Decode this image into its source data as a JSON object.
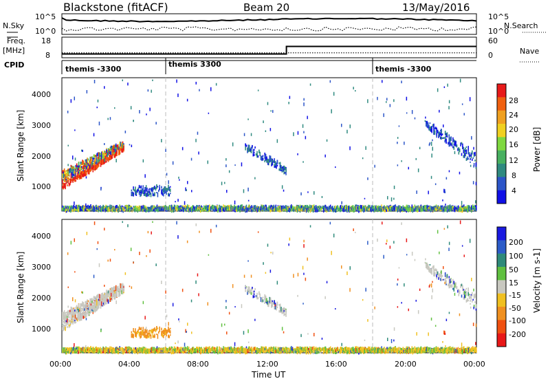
{
  "header": {
    "station": "Blackstone (fitACF)",
    "beam": "Beam 20",
    "date": "13/May/2016"
  },
  "side_labels": {
    "nsky": "N.Sky",
    "nsearch": "N.Search",
    "freq": "Freq.",
    "freq_unit": "[MHz]",
    "nave": "Nave",
    "cpid": "CPID"
  },
  "cpid_segments": [
    {
      "label": "themis -3300",
      "start_h": 0
    },
    {
      "label": "themis 3300",
      "start_h": 6
    },
    {
      "label": "themis -3300",
      "start_h": 18
    }
  ],
  "colors": {
    "power_scale": [
      "#1010e6",
      "#2c55c8",
      "#2f8a80",
      "#48b060",
      "#7fd840",
      "#f0d020",
      "#f0a020",
      "#f06010",
      "#e81a1a"
    ],
    "velocity_scale": [
      "#1a1ae0",
      "#2c5cc8",
      "#2e8a7a",
      "#60c040",
      "#c8c8c0",
      "#f0c020",
      "#f09020",
      "#f05010",
      "#e81818"
    ],
    "gray_dash": "#bbbbbb"
  },
  "chart_data": [
    {
      "type": "line",
      "name": "noise-panel",
      "ylabel_left": "N.Sky",
      "ylabel_right": "N.Search",
      "y_ticks": [
        "10^5",
        "10^0"
      ],
      "y_ticks_right": [
        "10^5",
        "10^0"
      ],
      "x_range_h": [
        0,
        24
      ]
    },
    {
      "type": "line",
      "name": "frequency-panel",
      "ylabel_left": "Freq. [MHz]",
      "ylabel_right": "Nave",
      "y_ticks_left": [
        18,
        8
      ],
      "y_ticks_right": [
        60,
        0
      ],
      "freq_mhz": [
        {
          "from_h": 0,
          "to_h": 13,
          "value": 10.5
        },
        {
          "from_h": 13,
          "to_h": 24,
          "value": 15.5
        }
      ],
      "nave": [
        {
          "from_h": 0,
          "to_h": 24,
          "value": 18
        }
      ]
    },
    {
      "type": "heatmap",
      "name": "power-panel",
      "ylabel": "Slant Range [km]",
      "y_ticks": [
        1000,
        2000,
        3000,
        4000
      ],
      "ylim": [
        180,
        4600
      ],
      "x_range_h": [
        0,
        24
      ],
      "colorbar_label": "Power [dB]",
      "colorbar_ticks": [
        "28",
        "24",
        "20",
        "16",
        "12",
        "8",
        "4"
      ],
      "scatter_regions": [
        {
          "t": [
            0,
            3.6
          ],
          "range_start": [
            900,
            2200
          ],
          "range_end": [
            1500,
            2500
          ],
          "value": "high",
          "note": "near-range arc"
        },
        {
          "t": [
            10.6,
            13.0
          ],
          "range_start": [
            2200,
            1400
          ],
          "range_end": [
            2500,
            1600
          ],
          "value": "low"
        },
        {
          "t": [
            21.0,
            24.0
          ],
          "range_start": [
            3000,
            1600
          ],
          "range_end": [
            3200,
            2100
          ],
          "value": "low"
        },
        {
          "t": [
            4.0,
            6.3
          ],
          "range_start": [
            700,
            700
          ],
          "range_end": [
            1000,
            1000
          ],
          "value": "low"
        },
        {
          "t": [
            0.0,
            24.0
          ],
          "range_start": [
            200,
            200
          ],
          "range_end": [
            330,
            330
          ],
          "value": "mixed",
          "note": "ground band"
        }
      ]
    },
    {
      "type": "heatmap",
      "name": "velocity-panel",
      "ylabel": "Slant Range [km]",
      "y_ticks": [
        1000,
        2000,
        3000,
        4000
      ],
      "ylim": [
        180,
        4600
      ],
      "x_range_h": [
        0,
        24
      ],
      "xlabel": "Time UT",
      "x_ticks": [
        "00:00",
        "04:00",
        "08:00",
        "12:00",
        "16:00",
        "20:00",
        "00:00"
      ],
      "colorbar_label": "Velocity [m s-1]",
      "colorbar_ticks": [
        "200",
        "100",
        "50",
        "15",
        "-15",
        "-50",
        "-100",
        "-200"
      ]
    }
  ]
}
